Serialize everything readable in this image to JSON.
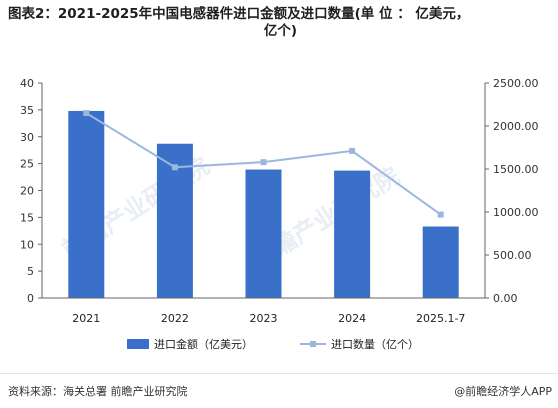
{
  "title_line1": "图表2：2021-2025年中国电感器件进口金额及进口数量(单 位 ： 亿美元，",
  "title_line2": "亿个)",
  "footer": {
    "source": "资料来源：海关总署 前瞻产业研究院",
    "brand": "@前瞻经济学人APP"
  },
  "watermark": "前瞻产业研究院",
  "chart_data": {
    "type": "bar",
    "categories": [
      "2021",
      "2022",
      "2023",
      "2024",
      "2025.1-7"
    ],
    "series": [
      {
        "name": "进口金额（亿美元）",
        "type": "bar",
        "axis": "left",
        "values": [
          34.8,
          28.7,
          23.9,
          23.7,
          13.3
        ],
        "color": "#3a70c9"
      },
      {
        "name": "进口数量（亿个）",
        "type": "line",
        "axis": "right",
        "values": [
          2150,
          1520,
          1580,
          1710,
          970
        ],
        "color": "#9db6e0"
      }
    ],
    "y_left": {
      "ylim": [
        0,
        40
      ],
      "ticks": [
        "0",
        "5",
        "10",
        "15",
        "20",
        "25",
        "30",
        "35",
        "40"
      ]
    },
    "y_right": {
      "ylim": [
        0,
        2500
      ],
      "ticks": [
        "0.00",
        "500.00",
        "1000.00",
        "1500.00",
        "2000.00",
        "2500.00"
      ]
    },
    "legend_position": "bottom"
  }
}
